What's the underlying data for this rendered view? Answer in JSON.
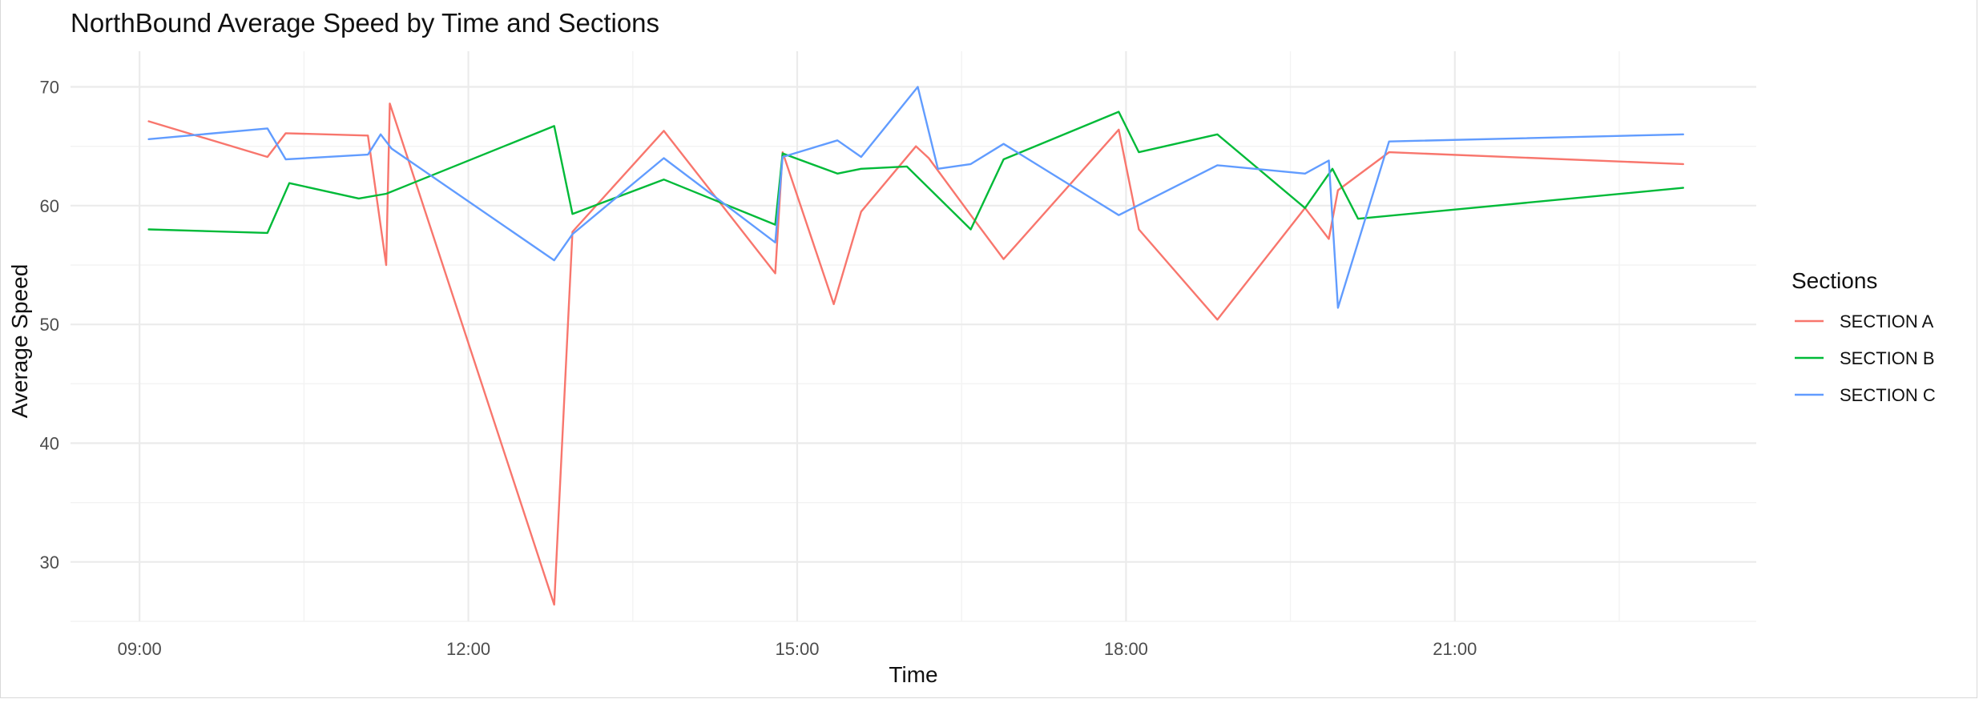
{
  "chart_data": {
    "type": "line",
    "title": "NorthBound Average Speed by Time and Sections",
    "xlabel": "Time",
    "ylabel": "Average Speed",
    "x_ticks": [
      "09:00",
      "12:00",
      "15:00",
      "18:00",
      "21:00"
    ],
    "x_tick_hours": [
      9,
      12,
      15,
      18,
      21
    ],
    "y_ticks": [
      30,
      40,
      50,
      60,
      70
    ],
    "xlim": [
      8.37,
      23.75
    ],
    "ylim": [
      25,
      73
    ],
    "grid": true,
    "legend": {
      "title": "Sections",
      "placement": "right"
    },
    "series": [
      {
        "name": "SECTION A",
        "color": "#F8766D",
        "points": [
          [
            "09:05",
            67.1
          ],
          [
            "10:10",
            64.1
          ],
          [
            "10:20",
            66.1
          ],
          [
            "11:05",
            65.9
          ],
          [
            "11:15",
            55.0
          ],
          [
            "11:17",
            68.6
          ],
          [
            "12:47",
            26.4
          ],
          [
            "12:57",
            57.8
          ],
          [
            "13:47",
            66.3
          ],
          [
            "14:48",
            54.3
          ],
          [
            "14:52",
            64.5
          ],
          [
            "15:20",
            51.7
          ],
          [
            "15:35",
            59.5
          ],
          [
            "16:05",
            65.0
          ],
          [
            "16:12",
            64.0
          ],
          [
            "16:35",
            59.2
          ],
          [
            "16:53",
            55.5
          ],
          [
            "17:56",
            66.4
          ],
          [
            "18:07",
            58.0
          ],
          [
            "18:50",
            50.4
          ],
          [
            "19:38",
            59.8
          ],
          [
            "19:51",
            57.2
          ],
          [
            "19:56",
            61.3
          ],
          [
            "20:24",
            64.5
          ],
          [
            "23:05",
            63.5
          ]
        ]
      },
      {
        "name": "SECTION B",
        "color": "#00BA38",
        "points": [
          [
            "09:05",
            58.0
          ],
          [
            "10:10",
            57.7
          ],
          [
            "10:22",
            61.9
          ],
          [
            "11:00",
            60.6
          ],
          [
            "11:15",
            61.0
          ],
          [
            "12:47",
            66.7
          ],
          [
            "12:57",
            59.3
          ],
          [
            "13:47",
            62.2
          ],
          [
            "14:48",
            58.4
          ],
          [
            "14:52",
            64.4
          ],
          [
            "15:22",
            62.7
          ],
          [
            "15:35",
            63.1
          ],
          [
            "16:00",
            63.3
          ],
          [
            "16:35",
            58.0
          ],
          [
            "16:53",
            63.9
          ],
          [
            "17:56",
            67.9
          ],
          [
            "18:07",
            64.5
          ],
          [
            "18:50",
            66.0
          ],
          [
            "19:38",
            59.8
          ],
          [
            "19:53",
            63.1
          ],
          [
            "20:07",
            58.9
          ],
          [
            "23:05",
            61.5
          ]
        ]
      },
      {
        "name": "SECTION C",
        "color": "#619CFF",
        "points": [
          [
            "09:05",
            65.6
          ],
          [
            "10:10",
            66.5
          ],
          [
            "10:20",
            63.9
          ],
          [
            "11:05",
            64.3
          ],
          [
            "11:12",
            66.0
          ],
          [
            "11:18",
            64.8
          ],
          [
            "12:47",
            55.4
          ],
          [
            "12:57",
            57.6
          ],
          [
            "13:47",
            64.0
          ],
          [
            "14:48",
            56.9
          ],
          [
            "14:52",
            64.1
          ],
          [
            "15:22",
            65.5
          ],
          [
            "15:35",
            64.1
          ],
          [
            "16:06",
            70.0
          ],
          [
            "16:17",
            63.1
          ],
          [
            "16:35",
            63.5
          ],
          [
            "16:53",
            65.2
          ],
          [
            "17:56",
            59.2
          ],
          [
            "18:50",
            63.4
          ],
          [
            "19:38",
            62.7
          ],
          [
            "19:51",
            63.8
          ],
          [
            "19:56",
            51.4
          ],
          [
            "20:24",
            65.4
          ],
          [
            "23:05",
            66.0
          ]
        ]
      }
    ]
  }
}
